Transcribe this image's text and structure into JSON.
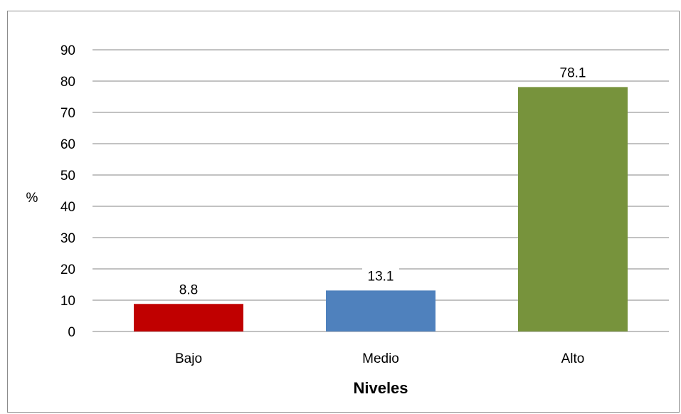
{
  "chart_data": {
    "type": "bar",
    "categories": [
      "Bajo",
      "Medio",
      "Alto"
    ],
    "values": [
      8.8,
      13.1,
      78.1
    ],
    "data_labels": [
      "8.8",
      "13.1",
      "78.1"
    ],
    "colors": [
      "#c00000",
      "#4f81bd",
      "#77933c"
    ],
    "xlabel": "Niveles",
    "ylabel": "%",
    "ylim": [
      0,
      90
    ],
    "yticks": [
      0,
      10,
      20,
      30,
      40,
      50,
      60,
      70,
      80,
      90
    ],
    "grid": true,
    "legend": "none"
  }
}
